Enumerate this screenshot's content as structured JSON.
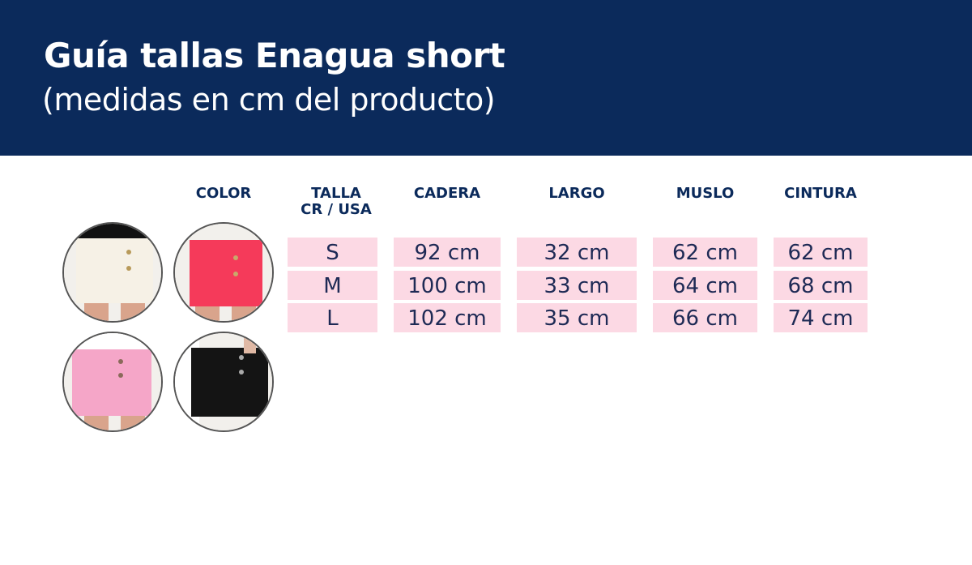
{
  "header": {
    "title": "Guía tallas Enagua short",
    "subtitle": "(medidas en cm del producto)",
    "background_color": "#0b2a5b"
  },
  "table": {
    "color_header": "COLOR",
    "columns": [
      "TALLA\nCR / USA",
      "CADERA",
      "LARGO",
      "MUSLO",
      "CINTURA"
    ],
    "column_talla_line1": "TALLA",
    "column_talla_line2": "CR / USA",
    "rows": [
      [
        "S",
        "92 cm",
        "32 cm",
        "62 cm",
        "62 cm"
      ],
      [
        "M",
        "100 cm",
        "33 cm",
        "64 cm",
        "68 cm"
      ],
      [
        "L",
        "102 cm",
        "35 cm",
        "66 cm",
        "74 cm"
      ]
    ],
    "cell_color": "#fcd9e4"
  },
  "colors": [
    {
      "name": "white",
      "hex": "#f6f1e6"
    },
    {
      "name": "coral",
      "hex": "#f53a5a"
    },
    {
      "name": "pink",
      "hex": "#f5a6c8"
    },
    {
      "name": "black",
      "hex": "#141414"
    }
  ]
}
